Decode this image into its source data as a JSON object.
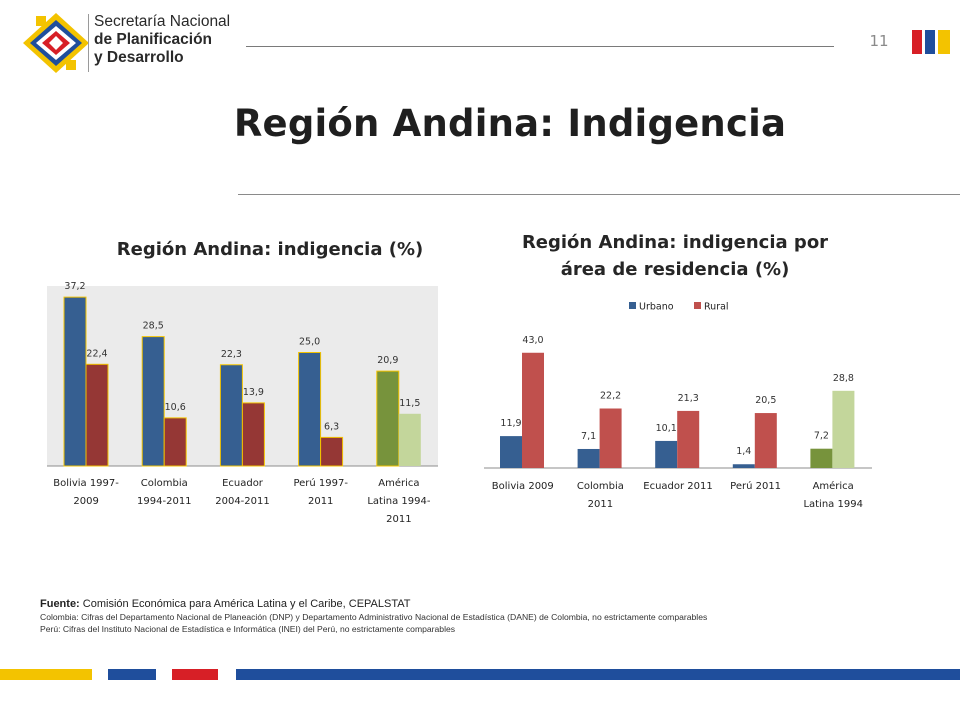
{
  "header": {
    "org_line1": "Secretaría Nacional",
    "org_line2": "de Planificación",
    "org_line3": "y Desarrollo",
    "page_number": "11"
  },
  "slide": {
    "title": "Región Andina: Indigencia"
  },
  "colors": {
    "blue": "#365F91",
    "red": "#953735",
    "red_light": "#C0504D",
    "green": "#77933C",
    "green_light": "#C3D69B",
    "yellow": "#F3C300",
    "stripe_blue": "#1F4E9C",
    "stripe_red": "#D71F26",
    "plot_bg": "#EBEBEB"
  },
  "chart_data": [
    {
      "type": "bar",
      "title": "Región Andina: indigencia (%)",
      "categories": [
        "Bolivia 1997-2009",
        "Colombia 1994-2011",
        "Ecuador 2004-2011",
        "Perú 1997-2011",
        "América Latina 1994-2011"
      ],
      "category_label_lines": [
        [
          "Bolivia 1997-",
          "2009"
        ],
        [
          "Colombia",
          "1994-2011"
        ],
        [
          "Ecuador",
          "2004-2011"
        ],
        [
          "Perú 1997-",
          "2011"
        ],
        [
          "América",
          "Latina 1994-",
          "2011"
        ]
      ],
      "series": [
        {
          "values": [
            37.2,
            28.5,
            22.3,
            25.0,
            20.9
          ],
          "labels": [
            "37,2",
            "28,5",
            "22,3",
            "25,0",
            "20,9"
          ]
        },
        {
          "values": [
            22.4,
            10.6,
            13.9,
            6.3,
            11.5
          ],
          "labels": [
            "22,4",
            "10,6",
            "13,9",
            "6,3",
            "11,5"
          ]
        }
      ],
      "ylim": [
        0,
        40
      ],
      "grid": false,
      "legend": "none"
    },
    {
      "type": "bar",
      "title": "Región Andina: indigencia por área de residencia (%)",
      "title_lines": [
        "Región Andina: indigencia por",
        "área de residencia (%)"
      ],
      "categories": [
        "Bolivia 2009",
        "Colombia 2011",
        "Ecuador 2011",
        "Perú 2011",
        "América Latina 1994"
      ],
      "category_label_lines": [
        [
          "Bolivia 2009"
        ],
        [
          "Colombia",
          "2011"
        ],
        [
          "Ecuador 2011"
        ],
        [
          "Perú 2011"
        ],
        [
          "América",
          "Latina 1994"
        ]
      ],
      "series": [
        {
          "name": "Urbano",
          "values": [
            11.9,
            7.1,
            10.1,
            1.4,
            7.2
          ],
          "labels": [
            "11,9",
            "7,1",
            "10,1",
            "1,4",
            "7,2"
          ]
        },
        {
          "name": "Rural",
          "values": [
            43.0,
            22.2,
            21.3,
            20.5,
            28.8
          ],
          "labels": [
            "43,0",
            "22,2",
            "21,3",
            "20,5",
            "28,8"
          ]
        }
      ],
      "ylim": [
        0,
        50
      ],
      "grid": false,
      "legend": "top-center"
    }
  ],
  "notes": {
    "source_label": "Fuente:",
    "source_text": " Comisión Económica para América Latina y el Caribe, CEPALSTAT",
    "colombia": "Colombia: Cifras del Departamento Nacional de Planeación (DNP) y Departamento Administrativo Nacional de Estadística (DANE)  de Colombia, no estrictamente comparables",
    "peru": "Perú: Cifras del Instituto Nacional de Estadística e Informática (INEI) del Perú, no estrictamente comparables"
  }
}
